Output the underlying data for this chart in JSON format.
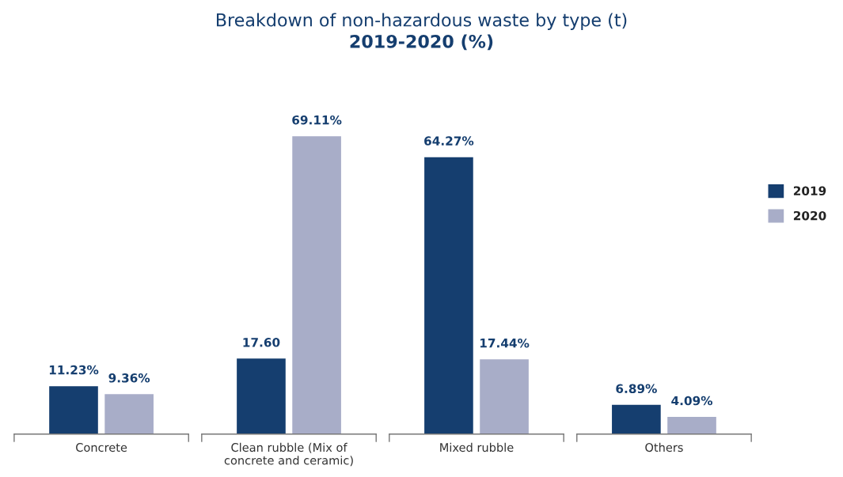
{
  "chart_data": {
    "type": "bar",
    "title": "Breakdown of non-hazardous waste by type (t)",
    "subtitle": "2019-2020 (%)",
    "categories": [
      "Concrete",
      "Clean rubble (Mix of\nconcrete and ceramic)",
      "Mixed rubble",
      "Others"
    ],
    "series": [
      {
        "name": "2019",
        "color": "#153e6f",
        "values": [
          11.23,
          17.6,
          64.27,
          6.89
        ],
        "value_labels": [
          "11.23%",
          "17.60",
          "64.27%",
          "6.89%"
        ]
      },
      {
        "name": "2020",
        "color": "#a8adc8",
        "values": [
          9.36,
          69.11,
          17.44,
          4.09
        ],
        "value_labels": [
          "9.36%",
          "69.11%",
          "17.44%",
          "4.09%"
        ]
      }
    ],
    "legend": "right",
    "grid": false
  }
}
